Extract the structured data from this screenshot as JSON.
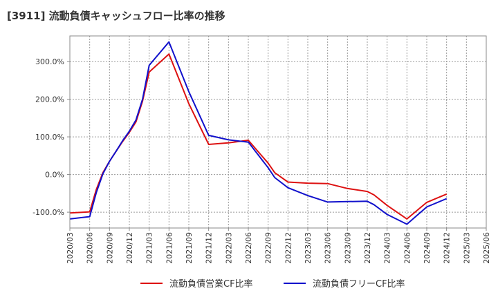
{
  "chart_data": {
    "type": "line",
    "title": "[3911]  流動負債キャッシュフロー比率の推移",
    "xlabel": "",
    "ylabel": "",
    "x_ticks": [
      "2020/03",
      "2020/06",
      "2020/09",
      "2020/12",
      "2021/03",
      "2021/06",
      "2021/09",
      "2021/12",
      "2022/03",
      "2022/06",
      "2022/09",
      "2022/12",
      "2023/03",
      "2023/06",
      "2023/09",
      "2023/12",
      "2024/03",
      "2024/06",
      "2024/09",
      "2024/12",
      "2025/03",
      "2025/06"
    ],
    "y_ticks": [
      "-100.0%",
      "0.0%",
      "100.0%",
      "200.0%",
      "300.0%"
    ],
    "y_tick_values": [
      -100,
      0,
      100,
      200,
      300
    ],
    "ylim": [
      -142,
      368
    ],
    "grid": true,
    "legend_position": "bottom",
    "x": [
      "2020/03",
      "2020/06",
      "2020/07",
      "2020/08",
      "2020/09",
      "2020/10",
      "2020/11",
      "2020/12",
      "2021/01",
      "2021/02",
      "2021/03",
      "2021/06",
      "2021/09",
      "2021/12",
      "2022/03",
      "2022/06",
      "2022/09",
      "2022/10",
      "2022/12",
      "2023/03",
      "2023/06",
      "2023/09",
      "2023/12",
      "2024/01",
      "2024/03",
      "2024/06",
      "2024/09",
      "2024/12"
    ],
    "series": [
      {
        "name": "流動負債営業CF比率",
        "color": "#dd1111",
        "values": [
          -102,
          -99,
          -40,
          5,
          35,
          62,
          88,
          112,
          140,
          195,
          272,
          320,
          188,
          80,
          84,
          91,
          30,
          5,
          -20,
          -23,
          -24,
          -37,
          -45,
          -54,
          -82,
          -118,
          -74,
          -52
        ]
      },
      {
        "name": "流動負債フリーCF比率",
        "color": "#1111cc",
        "values": [
          -118,
          -112,
          -48,
          2,
          35,
          62,
          90,
          115,
          145,
          200,
          290,
          352,
          220,
          104,
          92,
          86,
          18,
          -8,
          -35,
          -56,
          -73,
          -72,
          -71,
          -80,
          -106,
          -132,
          -86,
          -64
        ]
      }
    ]
  }
}
